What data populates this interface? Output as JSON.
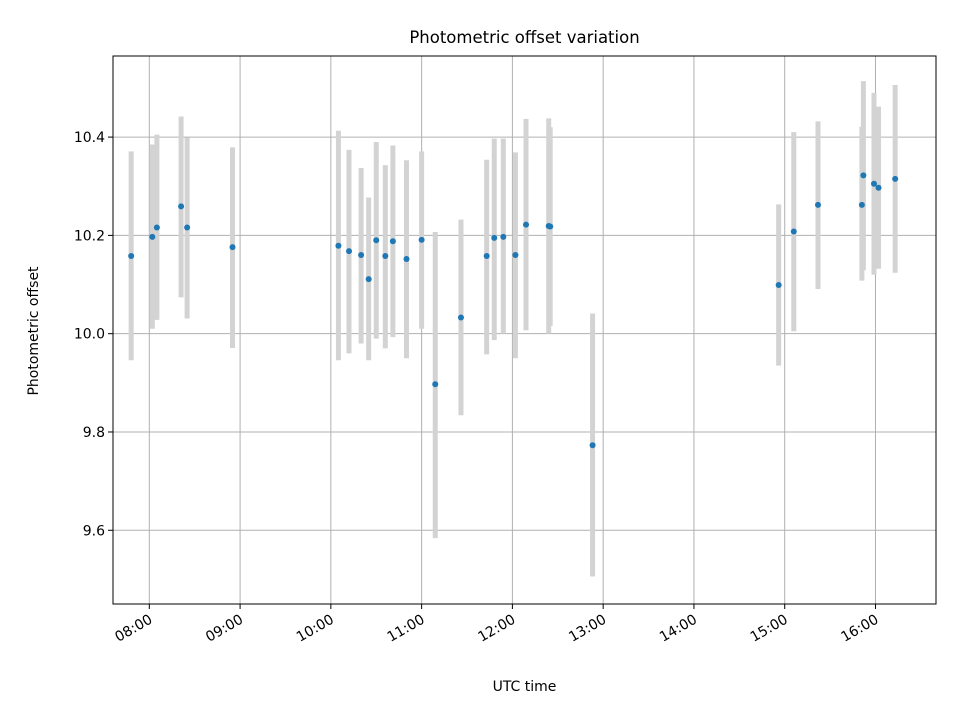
{
  "chart_data": {
    "type": "scatter",
    "title": "Photometric offset variation",
    "xlabel": "UTC time",
    "ylabel": "Photometric offset",
    "x_axis": "time",
    "xlim": [
      "07:36",
      "16:40"
    ],
    "ylim": [
      9.45,
      10.565
    ],
    "x_ticks": [
      "08:00",
      "09:00",
      "10:00",
      "11:00",
      "12:00",
      "13:00",
      "14:00",
      "15:00",
      "16:00"
    ],
    "y_ticks": [
      "9.6",
      "9.8",
      "10.0",
      "10.2",
      "10.4"
    ],
    "grid": true,
    "legend": "none",
    "colors": {
      "marker": "#1f77b4",
      "errorbar": "#d3d3d3",
      "grid": "#b0b0b0"
    },
    "points": [
      {
        "time": "07:48",
        "y": 10.158,
        "low": 9.946,
        "high": 10.371
      },
      {
        "time": "08:02",
        "y": 10.197,
        "low": 10.01,
        "high": 10.385
      },
      {
        "time": "08:05",
        "y": 10.216,
        "low": 10.028,
        "high": 10.405
      },
      {
        "time": "08:21",
        "y": 10.259,
        "low": 10.074,
        "high": 10.442
      },
      {
        "time": "08:25",
        "y": 10.216,
        "low": 10.031,
        "high": 10.399
      },
      {
        "time": "08:55",
        "y": 10.176,
        "low": 9.971,
        "high": 10.379
      },
      {
        "time": "10:05",
        "y": 10.179,
        "low": 9.946,
        "high": 10.413
      },
      {
        "time": "10:12",
        "y": 10.168,
        "low": 9.96,
        "high": 10.374
      },
      {
        "time": "10:20",
        "y": 10.16,
        "low": 9.98,
        "high": 10.337
      },
      {
        "time": "10:25",
        "y": 10.111,
        "low": 9.946,
        "high": 10.277
      },
      {
        "time": "10:30",
        "y": 10.19,
        "low": 9.99,
        "high": 10.39
      },
      {
        "time": "10:36",
        "y": 10.158,
        "low": 9.97,
        "high": 10.343
      },
      {
        "time": "10:41",
        "y": 10.188,
        "low": 9.993,
        "high": 10.383
      },
      {
        "time": "10:50",
        "y": 10.152,
        "low": 9.95,
        "high": 10.353
      },
      {
        "time": "11:00",
        "y": 10.191,
        "low": 10.01,
        "high": 10.371
      },
      {
        "time": "11:09",
        "y": 9.897,
        "low": 9.584,
        "high": 10.207
      },
      {
        "time": "11:26",
        "y": 10.033,
        "low": 9.834,
        "high": 10.232
      },
      {
        "time": "11:43",
        "y": 10.158,
        "low": 9.958,
        "high": 10.354
      },
      {
        "time": "11:48",
        "y": 10.195,
        "low": 9.987,
        "high": 10.397
      },
      {
        "time": "11:54",
        "y": 10.197,
        "low": 10.0,
        "high": 10.397
      },
      {
        "time": "12:02",
        "y": 10.16,
        "low": 9.95,
        "high": 10.369
      },
      {
        "time": "12:09",
        "y": 10.222,
        "low": 10.007,
        "high": 10.437
      },
      {
        "time": "12:24",
        "y": 10.219,
        "low": 10.0,
        "high": 10.438
      },
      {
        "time": "12:25",
        "y": 10.218,
        "low": 10.016,
        "high": 10.42
      },
      {
        "time": "12:53",
        "y": 9.773,
        "low": 9.506,
        "high": 10.041
      },
      {
        "time": "14:56",
        "y": 10.099,
        "low": 9.935,
        "high": 10.263
      },
      {
        "time": "15:06",
        "y": 10.208,
        "low": 10.005,
        "high": 10.41
      },
      {
        "time": "15:22",
        "y": 10.262,
        "low": 10.091,
        "high": 10.432
      },
      {
        "time": "15:51",
        "y": 10.262,
        "low": 10.108,
        "high": 10.421
      },
      {
        "time": "15:52",
        "y": 10.322,
        "low": 10.129,
        "high": 10.514
      },
      {
        "time": "15:59",
        "y": 10.305,
        "low": 10.12,
        "high": 10.49
      },
      {
        "time": "16:02",
        "y": 10.297,
        "low": 10.132,
        "high": 10.462
      },
      {
        "time": "16:13",
        "y": 10.315,
        "low": 10.124,
        "high": 10.506
      }
    ]
  }
}
